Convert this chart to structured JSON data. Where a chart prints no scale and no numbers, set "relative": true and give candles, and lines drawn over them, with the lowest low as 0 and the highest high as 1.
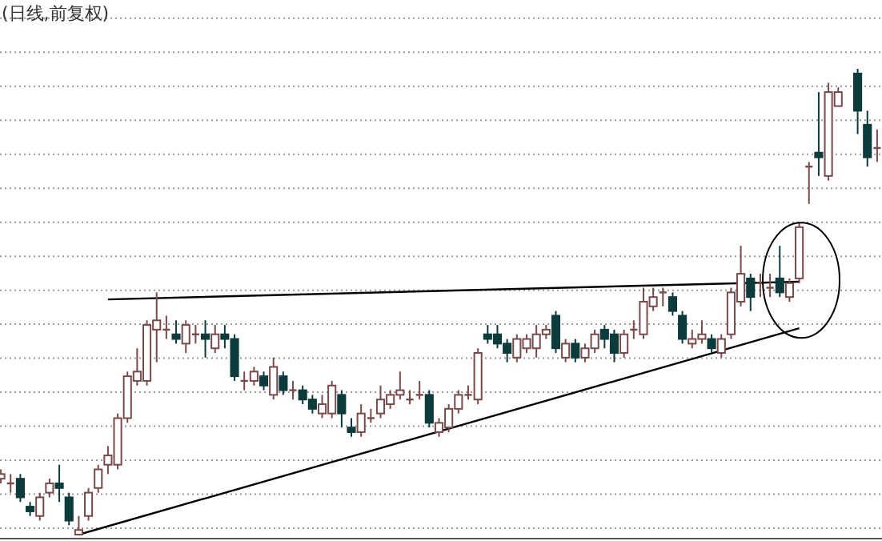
{
  "chart_data": {
    "type": "candlestick",
    "title": "(日线,前复权)",
    "relative": true,
    "grid": "y",
    "categories": [
      null,
      null,
      null,
      null,
      null,
      null,
      null,
      null,
      null,
      null,
      null,
      null,
      null,
      null,
      null,
      null,
      null,
      null,
      null,
      null,
      null,
      null,
      null,
      null,
      null,
      null,
      null,
      null,
      null,
      null,
      null,
      null,
      null,
      null,
      null,
      null,
      null,
      null,
      null,
      null,
      null,
      null,
      null,
      null,
      null,
      null,
      null,
      null,
      null,
      null,
      null,
      null,
      null,
      null,
      null,
      null,
      null,
      null,
      null,
      null,
      null,
      null,
      null,
      null,
      null,
      null,
      null,
      null,
      null,
      null,
      null,
      null,
      null,
      null,
      null,
      null,
      null,
      null,
      null,
      null,
      null,
      null,
      null,
      null,
      null,
      null,
      null,
      null,
      null,
      null,
      null
    ],
    "ohlc": [
      [
        0.12,
        0.14,
        0.11,
        0.13
      ],
      [
        0.11,
        0.13,
        0.09,
        0.11
      ],
      [
        0.12,
        0.13,
        0.07,
        0.08
      ],
      [
        0.06,
        0.07,
        0.04,
        0.05
      ],
      [
        0.04,
        0.09,
        0.03,
        0.08
      ],
      [
        0.09,
        0.12,
        0.08,
        0.11
      ],
      [
        0.11,
        0.15,
        0.07,
        0.1
      ],
      [
        0.08,
        0.09,
        0.02,
        0.03
      ],
      [
        0.0,
        0.04,
        0.0,
        0.01
      ],
      [
        0.04,
        0.1,
        0.03,
        0.09
      ],
      [
        0.1,
        0.15,
        0.09,
        0.14
      ],
      [
        0.15,
        0.19,
        0.13,
        0.17
      ],
      [
        0.15,
        0.26,
        0.14,
        0.25
      ],
      [
        0.25,
        0.35,
        0.24,
        0.34
      ],
      [
        0.33,
        0.4,
        0.32,
        0.35
      ],
      [
        0.33,
        0.46,
        0.32,
        0.45
      ],
      [
        0.44,
        0.52,
        0.37,
        0.46
      ],
      [
        0.44,
        0.47,
        0.42,
        0.44
      ],
      [
        0.43,
        0.46,
        0.41,
        0.42
      ],
      [
        0.41,
        0.46,
        0.39,
        0.45
      ],
      [
        0.43,
        0.45,
        0.41,
        0.43
      ],
      [
        0.43,
        0.46,
        0.38,
        0.42
      ],
      [
        0.4,
        0.45,
        0.39,
        0.43
      ],
      [
        0.43,
        0.45,
        0.4,
        0.42
      ],
      [
        0.42,
        0.43,
        0.33,
        0.34
      ],
      [
        0.33,
        0.35,
        0.31,
        0.33
      ],
      [
        0.33,
        0.36,
        0.32,
        0.35
      ],
      [
        0.34,
        0.35,
        0.31,
        0.32
      ],
      [
        0.3,
        0.38,
        0.29,
        0.36
      ],
      [
        0.34,
        0.35,
        0.3,
        0.31
      ],
      [
        0.31,
        0.33,
        0.29,
        0.31
      ],
      [
        0.31,
        0.32,
        0.28,
        0.29
      ],
      [
        0.29,
        0.3,
        0.26,
        0.27
      ],
      [
        0.26,
        0.3,
        0.25,
        0.28
      ],
      [
        0.26,
        0.33,
        0.25,
        0.32
      ],
      [
        0.3,
        0.31,
        0.23,
        0.26
      ],
      [
        0.23,
        0.25,
        0.21,
        0.22
      ],
      [
        0.22,
        0.28,
        0.21,
        0.26
      ],
      [
        0.25,
        0.27,
        0.24,
        0.25
      ],
      [
        0.26,
        0.32,
        0.25,
        0.29
      ],
      [
        0.28,
        0.31,
        0.27,
        0.3
      ],
      [
        0.3,
        0.35,
        0.29,
        0.31
      ],
      [
        0.29,
        0.31,
        0.28,
        0.29
      ],
      [
        0.3,
        0.33,
        0.29,
        0.3
      ],
      [
        0.3,
        0.31,
        0.23,
        0.24
      ],
      [
        0.22,
        0.25,
        0.21,
        0.24
      ],
      [
        0.23,
        0.28,
        0.22,
        0.27
      ],
      [
        0.27,
        0.31,
        0.26,
        0.3
      ],
      [
        0.3,
        0.32,
        0.29,
        0.3
      ],
      [
        0.29,
        0.4,
        0.28,
        0.39
      ],
      [
        0.43,
        0.45,
        0.41,
        0.42
      ],
      [
        0.43,
        0.45,
        0.4,
        0.41
      ],
      [
        0.41,
        0.42,
        0.37,
        0.39
      ],
      [
        0.38,
        0.43,
        0.37,
        0.42
      ],
      [
        0.4,
        0.43,
        0.39,
        0.42
      ],
      [
        0.4,
        0.45,
        0.38,
        0.43
      ],
      [
        0.43,
        0.45,
        0.42,
        0.44
      ],
      [
        0.47,
        0.48,
        0.39,
        0.4
      ],
      [
        0.38,
        0.42,
        0.37,
        0.41
      ],
      [
        0.41,
        0.42,
        0.37,
        0.38
      ],
      [
        0.38,
        0.41,
        0.37,
        0.4
      ],
      [
        0.4,
        0.44,
        0.39,
        0.43
      ],
      [
        0.44,
        0.45,
        0.4,
        0.42
      ],
      [
        0.43,
        0.44,
        0.37,
        0.39
      ],
      [
        0.39,
        0.44,
        0.38,
        0.43
      ],
      [
        0.44,
        0.46,
        0.42,
        0.44
      ],
      [
        0.43,
        0.53,
        0.42,
        0.5
      ],
      [
        0.49,
        0.53,
        0.48,
        0.51
      ],
      [
        0.52,
        0.53,
        0.49,
        0.52
      ],
      [
        0.51,
        0.52,
        0.47,
        0.48
      ],
      [
        0.47,
        0.48,
        0.41,
        0.42
      ],
      [
        0.41,
        0.44,
        0.4,
        0.42
      ],
      [
        0.42,
        0.46,
        0.41,
        0.43
      ],
      [
        0.42,
        0.43,
        0.39,
        0.4
      ],
      [
        0.39,
        0.43,
        0.38,
        0.42
      ],
      [
        0.43,
        0.53,
        0.42,
        0.52
      ],
      [
        0.5,
        0.62,
        0.49,
        0.56
      ],
      [
        0.55,
        0.56,
        0.48,
        0.51
      ],
      [
        0.54,
        0.56,
        0.51,
        0.54
      ],
      [
        0.53,
        0.56,
        0.51,
        0.53
      ],
      [
        0.55,
        0.62,
        0.51,
        0.52
      ],
      [
        0.51,
        0.55,
        0.5,
        0.54
      ],
      [
        0.55,
        0.67,
        0.54,
        0.66
      ],
      [
        0.79,
        0.8,
        0.71,
        0.79
      ],
      [
        0.82,
        0.95,
        0.77,
        0.81
      ],
      [
        0.77,
        0.97,
        0.76,
        0.95
      ],
      [
        0.92,
        0.96,
        0.92,
        0.95
      ],
      null,
      [
        0.99,
        1.0,
        0.86,
        0.91
      ],
      [
        0.88,
        0.91,
        0.79,
        0.81
      ],
      [
        0.83,
        0.87,
        0.8,
        0.83
      ]
    ],
    "series": [
      {
        "type": "line",
        "values": [
          null,
          null,
          null,
          null,
          null,
          null,
          null,
          null,
          null,
          null,
          null,
          0.505,
          null,
          null,
          null,
          null,
          null,
          null,
          null,
          null,
          null,
          null,
          null,
          null,
          null,
          null,
          null,
          null,
          null,
          null,
          null,
          null,
          null,
          null,
          null,
          null,
          null,
          null,
          null,
          null,
          null,
          null,
          null,
          null,
          null,
          null,
          null,
          null,
          null,
          null,
          null,
          null,
          null,
          null,
          null,
          null,
          null,
          null,
          null,
          null,
          null,
          null,
          null,
          null,
          null,
          null,
          null,
          null,
          null,
          null,
          null,
          null,
          null,
          null,
          null,
          null,
          null,
          null,
          null,
          null,
          null,
          null,
          0.543,
          null,
          null,
          null,
          null,
          null,
          null,
          null,
          null
        ],
        "color": "#000000"
      },
      {
        "type": "line",
        "values": [
          null,
          null,
          null,
          null,
          null,
          null,
          null,
          null,
          0.0,
          null,
          null,
          null,
          null,
          null,
          null,
          null,
          null,
          null,
          null,
          null,
          null,
          null,
          null,
          null,
          null,
          null,
          null,
          null,
          null,
          null,
          null,
          null,
          null,
          null,
          null,
          null,
          null,
          null,
          null,
          null,
          null,
          null,
          null,
          null,
          null,
          null,
          null,
          null,
          null,
          null,
          null,
          null,
          null,
          null,
          null,
          null,
          null,
          null,
          null,
          null,
          null,
          null,
          null,
          null,
          null,
          null,
          null,
          null,
          null,
          null,
          null,
          null,
          null,
          null,
          null,
          null,
          null,
          null,
          null,
          null,
          null,
          null,
          0.443,
          null,
          null,
          null,
          null,
          null,
          null,
          null,
          null
        ],
        "color": "#000000"
      }
    ]
  }
}
